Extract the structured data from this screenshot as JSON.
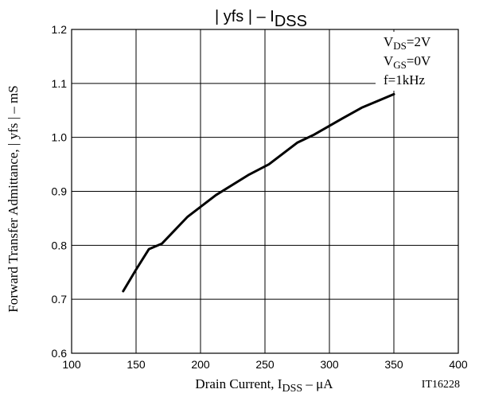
{
  "chart_data": {
    "type": "line",
    "title": {
      "main": "| yfs |  –  I",
      "sub": "DSS"
    },
    "xlabel": {
      "main": "Drain Current, I",
      "sub": "DSS",
      "tail": " –  μA"
    },
    "ylabel": "Forward Transfer Admittance, | yfs |  – mS",
    "xlim": [
      100,
      400
    ],
    "ylim": [
      0.6,
      1.2
    ],
    "x_ticks": [
      "100",
      "150",
      "200",
      "250",
      "300",
      "350",
      "400"
    ],
    "y_ticks": [
      "0.6",
      "0.7",
      "0.8",
      "0.9",
      "1.0",
      "1.1",
      "1.2"
    ],
    "grid": true,
    "conditions": [
      {
        "main": "V",
        "sub": "DS",
        "tail": "=2V"
      },
      {
        "main": "V",
        "sub": "GS",
        "tail": "=0V"
      },
      {
        "main": "f=1kHz",
        "sub": "",
        "tail": ""
      }
    ],
    "figure_id": "IT16228",
    "series": [
      {
        "x": [
          140,
          150,
          160,
          170,
          190,
          212,
          237,
          253,
          275,
          288,
          310,
          325,
          350
        ],
        "y": [
          0.715,
          0.755,
          0.793,
          0.803,
          0.853,
          0.893,
          0.93,
          0.95,
          0.99,
          1.005,
          1.035,
          1.055,
          1.08
        ]
      }
    ]
  }
}
